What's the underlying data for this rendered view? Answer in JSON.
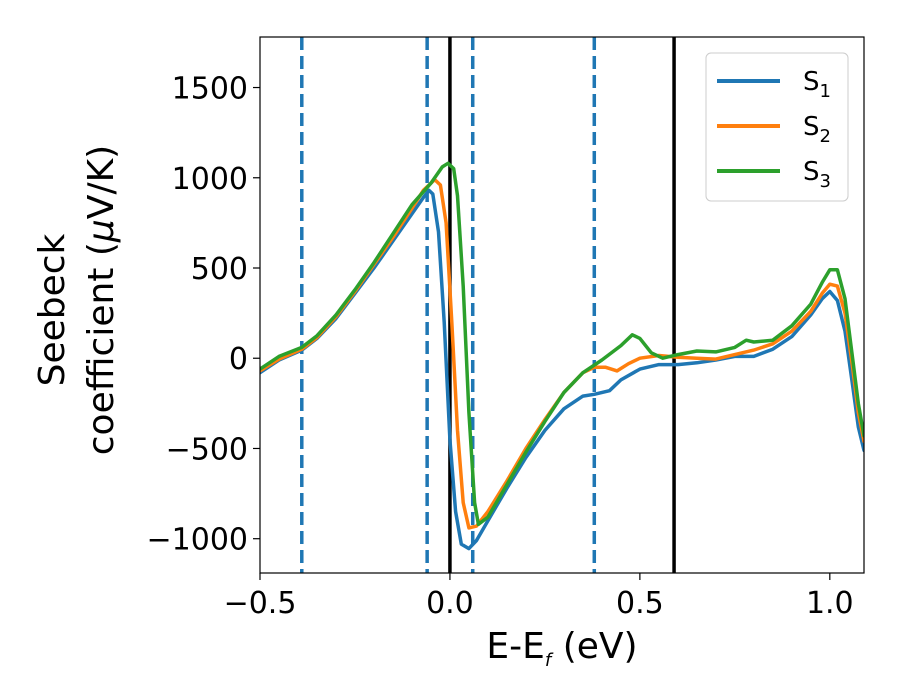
{
  "chart_data": {
    "type": "line",
    "xlabel": "E-E",
    "xlabel_sub": "f",
    "xlabel_unit": " (eV)",
    "ylabel_line1": "Seebeck",
    "ylabel_line2_pre": "coefficient  (",
    "ylabel_line2_mu": "μ",
    "ylabel_line2_post": "V/K)",
    "xlim": [
      -0.5,
      1.09
    ],
    "ylim": [
      -1190,
      1780
    ],
    "xticks": [
      -0.5,
      0.0,
      0.5,
      1.0
    ],
    "xtick_labels": [
      "−0.5",
      "0.0",
      "0.5",
      "1.0"
    ],
    "yticks": [
      -1000,
      -500,
      0,
      500,
      1000,
      1500
    ],
    "ytick_labels": [
      "−1000",
      "−500",
      "0",
      "500",
      "1000",
      "1500"
    ],
    "grid": false,
    "legend_position": "top-right",
    "vlines_dashed": [
      -0.39,
      -0.06,
      0.06,
      0.38
    ],
    "vlines_solid": [
      0.0,
      0.59
    ],
    "vline_colors": {
      "dashed": "#1f77b4",
      "solid": "#000000"
    },
    "series": [
      {
        "name": "S",
        "name_sub": "1",
        "color": "#1f77b4",
        "points": [
          [
            -0.5,
            -80
          ],
          [
            -0.45,
            -10
          ],
          [
            -0.39,
            45
          ],
          [
            -0.35,
            110
          ],
          [
            -0.3,
            220
          ],
          [
            -0.25,
            360
          ],
          [
            -0.2,
            500
          ],
          [
            -0.15,
            650
          ],
          [
            -0.1,
            800
          ],
          [
            -0.07,
            890
          ],
          [
            -0.055,
            930
          ],
          [
            -0.045,
            910
          ],
          [
            -0.03,
            700
          ],
          [
            -0.015,
            200
          ],
          [
            0.0,
            -450
          ],
          [
            0.015,
            -850
          ],
          [
            0.03,
            -1030
          ],
          [
            0.05,
            -1055
          ],
          [
            0.07,
            -1010
          ],
          [
            0.1,
            -900
          ],
          [
            0.15,
            -720
          ],
          [
            0.2,
            -550
          ],
          [
            0.25,
            -400
          ],
          [
            0.3,
            -280
          ],
          [
            0.35,
            -210
          ],
          [
            0.38,
            -200
          ],
          [
            0.42,
            -180
          ],
          [
            0.45,
            -120
          ],
          [
            0.5,
            -60
          ],
          [
            0.55,
            -35
          ],
          [
            0.6,
            -35
          ],
          [
            0.65,
            -25
          ],
          [
            0.7,
            -10
          ],
          [
            0.75,
            10
          ],
          [
            0.8,
            10
          ],
          [
            0.85,
            50
          ],
          [
            0.9,
            120
          ],
          [
            0.95,
            240
          ],
          [
            0.98,
            330
          ],
          [
            1.0,
            370
          ],
          [
            1.02,
            320
          ],
          [
            1.04,
            150
          ],
          [
            1.06,
            -150
          ],
          [
            1.075,
            -380
          ],
          [
            1.09,
            -510
          ]
        ]
      },
      {
        "name": "S",
        "name_sub": "2",
        "color": "#ff7f0e",
        "points": [
          [
            -0.5,
            -70
          ],
          [
            -0.45,
            -5
          ],
          [
            -0.39,
            50
          ],
          [
            -0.35,
            115
          ],
          [
            -0.3,
            230
          ],
          [
            -0.25,
            370
          ],
          [
            -0.2,
            520
          ],
          [
            -0.15,
            670
          ],
          [
            -0.1,
            830
          ],
          [
            -0.07,
            930
          ],
          [
            -0.04,
            990
          ],
          [
            -0.025,
            960
          ],
          [
            -0.01,
            750
          ],
          [
            0.005,
            200
          ],
          [
            0.02,
            -400
          ],
          [
            0.035,
            -800
          ],
          [
            0.05,
            -940
          ],
          [
            0.07,
            -930
          ],
          [
            0.1,
            -850
          ],
          [
            0.15,
            -680
          ],
          [
            0.2,
            -500
          ],
          [
            0.25,
            -340
          ],
          [
            0.3,
            -190
          ],
          [
            0.35,
            -80
          ],
          [
            0.38,
            -50
          ],
          [
            0.41,
            -50
          ],
          [
            0.44,
            -70
          ],
          [
            0.47,
            -30
          ],
          [
            0.5,
            0
          ],
          [
            0.55,
            15
          ],
          [
            0.6,
            5
          ],
          [
            0.65,
            0
          ],
          [
            0.7,
            -5
          ],
          [
            0.75,
            20
          ],
          [
            0.8,
            45
          ],
          [
            0.85,
            80
          ],
          [
            0.9,
            150
          ],
          [
            0.95,
            260
          ],
          [
            0.98,
            360
          ],
          [
            1.0,
            410
          ],
          [
            1.02,
            400
          ],
          [
            1.04,
            250
          ],
          [
            1.06,
            -50
          ],
          [
            1.075,
            -300
          ],
          [
            1.09,
            -460
          ]
        ]
      },
      {
        "name": "S",
        "name_sub": "3",
        "color": "#2ca02c",
        "points": [
          [
            -0.5,
            -60
          ],
          [
            -0.45,
            10
          ],
          [
            -0.39,
            60
          ],
          [
            -0.35,
            125
          ],
          [
            -0.3,
            240
          ],
          [
            -0.25,
            380
          ],
          [
            -0.2,
            530
          ],
          [
            -0.15,
            690
          ],
          [
            -0.1,
            850
          ],
          [
            -0.05,
            970
          ],
          [
            -0.02,
            1060
          ],
          [
            -0.005,
            1080
          ],
          [
            0.01,
            1050
          ],
          [
            0.02,
            900
          ],
          [
            0.035,
            400
          ],
          [
            0.05,
            -300
          ],
          [
            0.065,
            -800
          ],
          [
            0.075,
            -920
          ],
          [
            0.1,
            -880
          ],
          [
            0.15,
            -700
          ],
          [
            0.2,
            -520
          ],
          [
            0.25,
            -350
          ],
          [
            0.3,
            -190
          ],
          [
            0.35,
            -80
          ],
          [
            0.4,
            -10
          ],
          [
            0.45,
            70
          ],
          [
            0.48,
            130
          ],
          [
            0.5,
            110
          ],
          [
            0.53,
            30
          ],
          [
            0.56,
            0
          ],
          [
            0.6,
            20
          ],
          [
            0.65,
            40
          ],
          [
            0.7,
            35
          ],
          [
            0.75,
            60
          ],
          [
            0.78,
            100
          ],
          [
            0.8,
            90
          ],
          [
            0.85,
            100
          ],
          [
            0.9,
            180
          ],
          [
            0.95,
            300
          ],
          [
            0.98,
            420
          ],
          [
            1.0,
            490
          ],
          [
            1.02,
            490
          ],
          [
            1.04,
            330
          ],
          [
            1.06,
            0
          ],
          [
            1.075,
            -250
          ],
          [
            1.09,
            -430
          ]
        ]
      }
    ]
  }
}
